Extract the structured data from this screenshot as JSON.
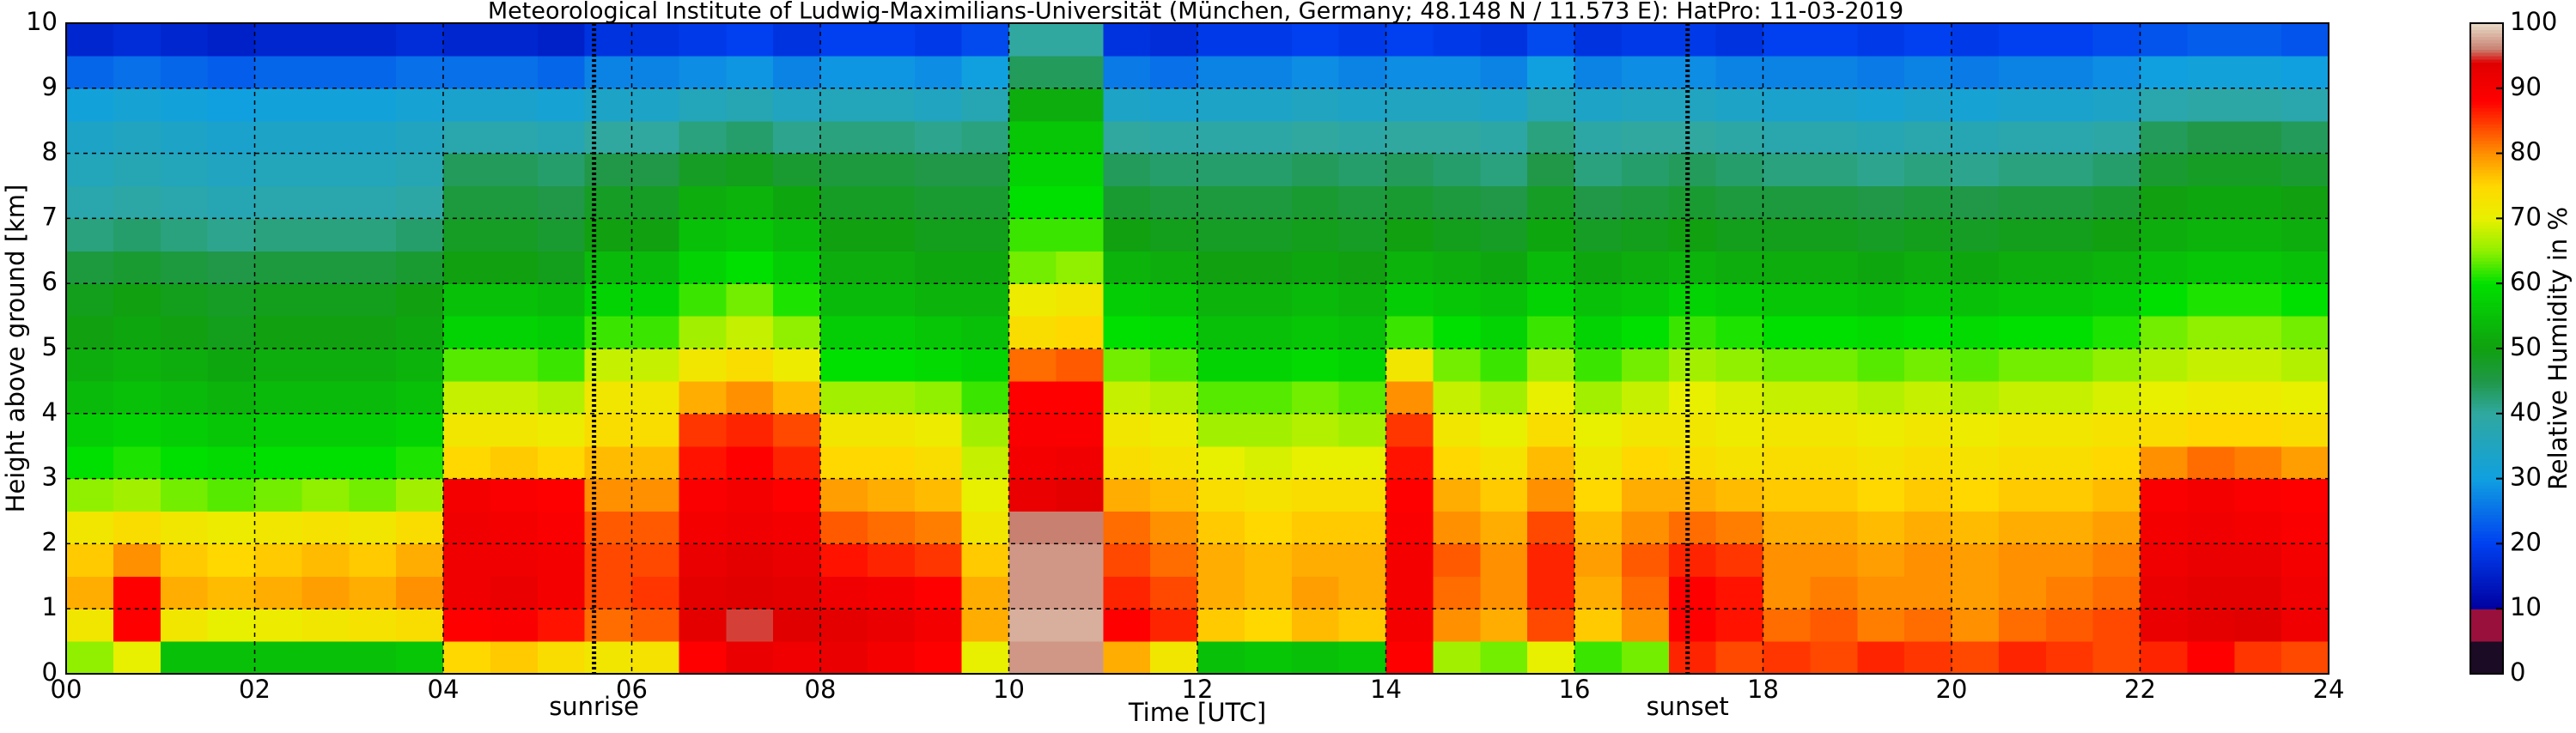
{
  "chart_data": {
    "type": "heatmap",
    "title": "Meteorological Institute of Ludwig-Maximilians-Universität (München, Germany; 48.148 N / 11.573 E):    HatPro: 11-03-2019",
    "xlabel": "Time [UTC]",
    "ylabel": "Height above ground [km]",
    "colorbar_label": "Relative Humidity in %",
    "xlim": [
      0,
      24
    ],
    "ylim": [
      0,
      10
    ],
    "clim": [
      0,
      100
    ],
    "xticks": [
      {
        "value": 0,
        "label": "00"
      },
      {
        "value": 2,
        "label": "02"
      },
      {
        "value": 4,
        "label": "04"
      },
      {
        "value": 6,
        "label": "06"
      },
      {
        "value": 8,
        "label": "08"
      },
      {
        "value": 10,
        "label": "10"
      },
      {
        "value": 12,
        "label": "12"
      },
      {
        "value": 14,
        "label": "14"
      },
      {
        "value": 16,
        "label": "16"
      },
      {
        "value": 18,
        "label": "18"
      },
      {
        "value": 20,
        "label": "20"
      },
      {
        "value": 22,
        "label": "22"
      },
      {
        "value": 24,
        "label": "24"
      }
    ],
    "yticks": [
      0,
      1,
      2,
      3,
      4,
      5,
      6,
      7,
      8,
      9,
      10
    ],
    "cticks": [
      0,
      10,
      20,
      30,
      40,
      50,
      60,
      70,
      80,
      90,
      100
    ],
    "grid": true,
    "annotations": [
      {
        "text": "sunrise",
        "x": 5.6
      },
      {
        "text": "sunset",
        "x": 17.2
      }
    ],
    "colorscale": [
      [
        0,
        "#1c0b24"
      ],
      [
        5,
        "#1c0b24"
      ],
      [
        5,
        "#99103c"
      ],
      [
        10,
        "#99103c"
      ],
      [
        10,
        "#0000a0"
      ],
      [
        20,
        "#0040f0"
      ],
      [
        30,
        "#10a0e0"
      ],
      [
        40,
        "#30a8a0"
      ],
      [
        45,
        "#209848"
      ],
      [
        50,
        "#10a010"
      ],
      [
        60,
        "#00e000"
      ],
      [
        65,
        "#90f000"
      ],
      [
        70,
        "#e8f000"
      ],
      [
        75,
        "#ffd800"
      ],
      [
        80,
        "#ff9000"
      ],
      [
        88,
        "#ff0000"
      ],
      [
        94,
        "#e00000"
      ],
      [
        96,
        "#c88070"
      ],
      [
        100,
        "#e8dcc8"
      ]
    ],
    "x": [
      0.25,
      0.75,
      1.25,
      1.75,
      2.25,
      2.75,
      3.25,
      3.75,
      4.25,
      4.75,
      5.25,
      5.75,
      6.25,
      6.75,
      7.25,
      7.75,
      8.25,
      8.75,
      9.25,
      9.75,
      10.25,
      10.75,
      11.25,
      11.75,
      12.25,
      12.75,
      13.25,
      13.75,
      14.25,
      14.75,
      15.25,
      15.75,
      16.25,
      16.75,
      17.25,
      17.75,
      18.25,
      18.75,
      19.25,
      19.75,
      20.25,
      20.75,
      21.25,
      21.75,
      22.25,
      22.75,
      23.25,
      23.75
    ],
    "y": [
      0.25,
      0.75,
      1.25,
      1.75,
      2.25,
      2.75,
      3.25,
      3.75,
      4.25,
      4.75,
      5.25,
      5.75,
      6.25,
      6.75,
      7.25,
      7.75,
      8.25,
      8.75,
      9.25,
      9.75
    ],
    "z": [
      [
        65,
        70,
        55,
        55,
        55,
        55,
        55,
        56,
        75,
        76,
        74,
        72,
        73,
        88,
        92,
        91,
        92,
        90,
        88,
        70,
        97,
        97,
        78,
        72,
        55,
        56,
        55,
        56,
        88,
        66,
        64,
        70,
        62,
        64,
        86,
        84,
        85,
        84,
        86,
        85,
        84,
        86,
        85,
        84,
        86,
        88,
        85,
        84
      ],
      [
        72,
        88,
        72,
        70,
        71,
        72,
        73,
        74,
        88,
        89,
        87,
        82,
        83,
        93,
        95,
        94,
        93,
        92,
        90,
        78,
        98,
        98,
        88,
        86,
        76,
        75,
        77,
        76,
        90,
        80,
        78,
        84,
        76,
        80,
        88,
        87,
        82,
        83,
        81,
        82,
        80,
        82,
        83,
        84,
        92,
        93,
        94,
        91
      ],
      [
        78,
        88,
        78,
        77,
        78,
        79,
        78,
        80,
        91,
        92,
        90,
        84,
        85,
        93,
        94,
        93,
        91,
        90,
        88,
        78,
        97,
        97,
        86,
        84,
        78,
        77,
        79,
        78,
        90,
        82,
        80,
        86,
        78,
        82,
        88,
        87,
        80,
        81,
        80,
        80,
        79,
        80,
        81,
        82,
        92,
        93,
        93,
        91
      ],
      [
        76,
        80,
        76,
        75,
        76,
        77,
        76,
        78,
        91,
        91,
        90,
        84,
        84,
        92,
        93,
        92,
        87,
        86,
        85,
        76,
        97,
        97,
        84,
        82,
        78,
        77,
        78,
        78,
        90,
        83,
        80,
        86,
        79,
        83,
        86,
        85,
        80,
        80,
        79,
        80,
        79,
        80,
        80,
        81,
        91,
        92,
        92,
        90
      ],
      [
        72,
        74,
        72,
        71,
        72,
        73,
        72,
        74,
        91,
        90,
        89,
        83,
        83,
        90,
        91,
        90,
        83,
        82,
        81,
        72,
        96,
        96,
        82,
        80,
        76,
        75,
        76,
        76,
        89,
        80,
        78,
        84,
        77,
        80,
        82,
        81,
        78,
        78,
        77,
        78,
        77,
        78,
        78,
        79,
        90,
        91,
        90,
        89
      ],
      [
        65,
        66,
        64,
        63,
        64,
        65,
        64,
        66,
        90,
        89,
        88,
        80,
        80,
        89,
        90,
        88,
        79,
        78,
        77,
        70,
        92,
        93,
        78,
        77,
        74,
        73,
        74,
        74,
        88,
        78,
        76,
        80,
        75,
        78,
        78,
        77,
        76,
        76,
        75,
        76,
        75,
        76,
        76,
        77,
        89,
        90,
        89,
        88
      ],
      [
        60,
        61,
        60,
        59,
        60,
        60,
        60,
        61,
        75,
        76,
        75,
        77,
        77,
        87,
        88,
        86,
        75,
        75,
        74,
        68,
        90,
        91,
        74,
        73,
        70,
        69,
        70,
        70,
        87,
        75,
        73,
        77,
        72,
        75,
        74,
        73,
        74,
        74,
        73,
        74,
        73,
        74,
        74,
        75,
        80,
        82,
        81,
        79
      ],
      [
        57,
        58,
        57,
        56,
        57,
        57,
        57,
        58,
        72,
        72,
        71,
        74,
        74,
        85,
        86,
        84,
        72,
        72,
        71,
        66,
        89,
        89,
        72,
        71,
        66,
        66,
        67,
        66,
        85,
        72,
        70,
        74,
        70,
        72,
        72,
        71,
        72,
        72,
        71,
        72,
        71,
        72,
        72,
        73,
        74,
        75,
        75,
        74
      ],
      [
        54,
        55,
        54,
        53,
        54,
        54,
        54,
        55,
        68,
        68,
        67,
        72,
        72,
        78,
        80,
        77,
        66,
        66,
        65,
        62,
        88,
        88,
        68,
        67,
        63,
        63,
        64,
        63,
        80,
        68,
        66,
        70,
        66,
        68,
        70,
        69,
        68,
        68,
        67,
        68,
        67,
        68,
        68,
        69,
        70,
        71,
        71,
        70
      ],
      [
        52,
        53,
        52,
        51,
        52,
        52,
        52,
        53,
        63,
        63,
        62,
        68,
        68,
        72,
        74,
        71,
        60,
        60,
        59,
        58,
        82,
        83,
        64,
        63,
        58,
        58,
        59,
        58,
        72,
        64,
        62,
        66,
        62,
        64,
        66,
        65,
        64,
        64,
        63,
        64,
        63,
        64,
        64,
        65,
        67,
        68,
        68,
        67
      ],
      [
        50,
        51,
        50,
        49,
        50,
        50,
        50,
        51,
        58,
        58,
        57,
        62,
        62,
        66,
        68,
        65,
        57,
        57,
        56,
        55,
        74,
        75,
        60,
        59,
        55,
        55,
        56,
        55,
        62,
        60,
        58,
        62,
        58,
        60,
        62,
        61,
        60,
        60,
        59,
        60,
        59,
        60,
        60,
        61,
        64,
        65,
        65,
        64
      ],
      [
        49,
        50,
        49,
        48,
        49,
        49,
        49,
        50,
        55,
        55,
        54,
        58,
        58,
        62,
        64,
        61,
        54,
        54,
        53,
        53,
        71,
        72,
        57,
        56,
        53,
        53,
        54,
        53,
        57,
        56,
        55,
        58,
        55,
        56,
        58,
        57,
        56,
        56,
        55,
        56,
        55,
        56,
        56,
        57,
        60,
        61,
        61,
        60
      ],
      [
        46,
        47,
        46,
        45,
        46,
        46,
        46,
        47,
        50,
        50,
        49,
        54,
        54,
        58,
        60,
        57,
        52,
        52,
        51,
        51,
        64,
        65,
        53,
        52,
        50,
        50,
        51,
        50,
        53,
        52,
        51,
        54,
        51,
        52,
        53,
        52,
        52,
        52,
        51,
        52,
        51,
        52,
        52,
        53,
        55,
        56,
        56,
        55
      ],
      [
        42,
        43,
        42,
        41,
        42,
        42,
        42,
        43,
        48,
        48,
        47,
        50,
        50,
        55,
        56,
        54,
        50,
        50,
        49,
        49,
        62,
        62,
        50,
        49,
        48,
        48,
        49,
        48,
        50,
        49,
        48,
        51,
        48,
        49,
        50,
        49,
        49,
        49,
        48,
        49,
        48,
        49,
        49,
        50,
        52,
        53,
        53,
        52
      ],
      [
        38,
        39,
        38,
        37,
        38,
        38,
        38,
        39,
        46,
        46,
        45,
        48,
        48,
        52,
        53,
        51,
        48,
        48,
        47,
        47,
        60,
        60,
        47,
        46,
        46,
        46,
        47,
        46,
        47,
        46,
        45,
        48,
        45,
        46,
        47,
        46,
        46,
        46,
        45,
        46,
        45,
        46,
        46,
        47,
        50,
        51,
        51,
        50
      ],
      [
        36,
        37,
        36,
        35,
        36,
        36,
        36,
        37,
        44,
        44,
        43,
        45,
        45,
        48,
        49,
        47,
        46,
        46,
        45,
        45,
        58,
        58,
        44,
        43,
        43,
        43,
        44,
        43,
        44,
        43,
        42,
        45,
        42,
        43,
        44,
        43,
        42,
        42,
        41,
        42,
        41,
        42,
        42,
        43,
        47,
        48,
        48,
        47
      ],
      [
        34,
        35,
        34,
        33,
        34,
        34,
        34,
        35,
        38,
        38,
        37,
        40,
        40,
        42,
        43,
        41,
        42,
        42,
        41,
        42,
        56,
        56,
        40,
        39,
        39,
        39,
        40,
        39,
        40,
        40,
        39,
        42,
        39,
        40,
        40,
        39,
        38,
        38,
        37,
        38,
        37,
        38,
        38,
        39,
        44,
        45,
        45,
        44
      ],
      [
        31,
        32,
        31,
        30,
        31,
        31,
        31,
        32,
        33,
        33,
        32,
        34,
        34,
        36,
        37,
        35,
        36,
        36,
        35,
        37,
        52,
        52,
        34,
        33,
        34,
        34,
        35,
        34,
        35,
        35,
        34,
        37,
        34,
        35,
        35,
        34,
        33,
        33,
        32,
        33,
        32,
        33,
        33,
        34,
        38,
        39,
        39,
        38
      ],
      [
        24,
        25,
        24,
        23,
        24,
        24,
        24,
        25,
        25,
        25,
        24,
        27,
        27,
        28,
        29,
        27,
        29,
        29,
        28,
        30,
        44,
        44,
        26,
        25,
        27,
        27,
        28,
        27,
        28,
        28,
        27,
        30,
        27,
        28,
        28,
        27,
        27,
        27,
        26,
        27,
        26,
        27,
        27,
        28,
        30,
        31,
        31,
        30
      ],
      [
        16,
        17,
        16,
        15,
        16,
        16,
        16,
        17,
        16,
        16,
        15,
        18,
        18,
        19,
        20,
        18,
        20,
        20,
        19,
        21,
        40,
        40,
        18,
        17,
        19,
        19,
        20,
        19,
        20,
        19,
        18,
        21,
        18,
        19,
        19,
        18,
        20,
        20,
        19,
        20,
        19,
        20,
        20,
        21,
        22,
        23,
        23,
        22
      ]
    ]
  }
}
